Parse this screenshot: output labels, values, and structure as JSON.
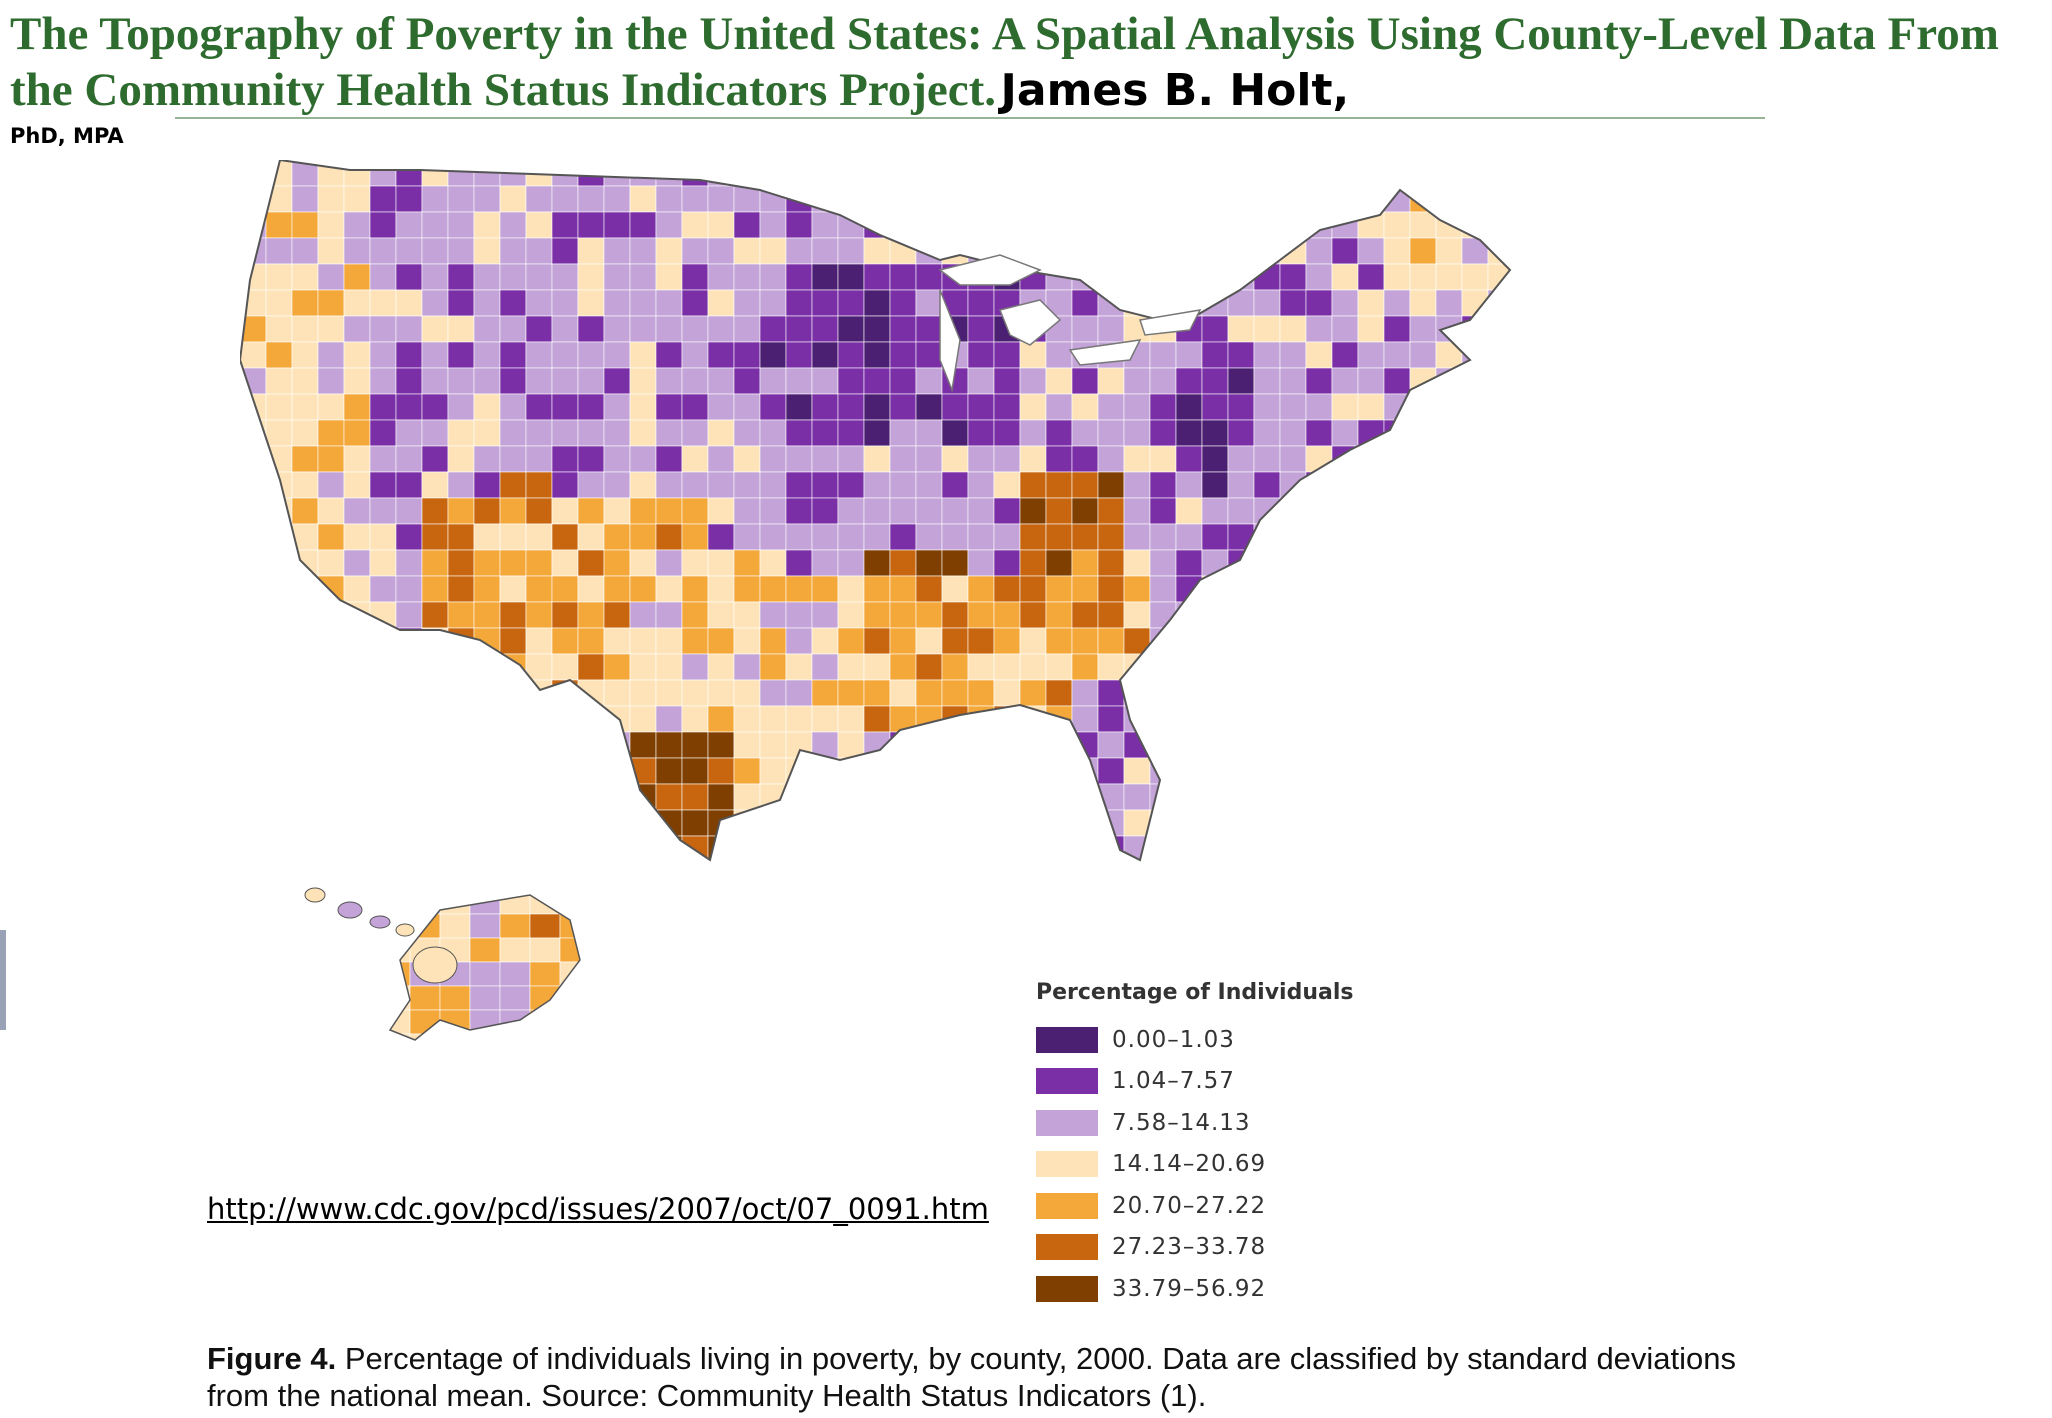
{
  "header": {
    "title": "The Topography of Poverty in the United States: A Spatial Analysis Using County-Level Data From the Community Health Status Indicators Project.",
    "author": "James B. Holt,",
    "credential": "PhD, MPA"
  },
  "legend": {
    "title": "Percentage of Individuals",
    "items": [
      {
        "label": "0.00–1.03",
        "color": "#4b2072"
      },
      {
        "label": "1.04–7.57",
        "color": "#7b2fa6"
      },
      {
        "label": "7.58–14.13",
        "color": "#c3a3d8"
      },
      {
        "label": "14.14–20.69",
        "color": "#fde3b7"
      },
      {
        "label": "20.70–27.22",
        "color": "#f4a83a"
      },
      {
        "label": "27.23–33.78",
        "color": "#c8650f"
      },
      {
        "label": "33.79–56.92",
        "color": "#7f3f00"
      }
    ]
  },
  "link": {
    "url": "http://www.cdc.gov/pcd/issues/2007/oct/07_0091.htm"
  },
  "caption": {
    "label": "Figure 4.",
    "text": "Percentage of individuals living in poverty, by county, 2000. Data are classified by standard deviations from the national mean. Source: Community Health Status Indicators (1)."
  },
  "map": {
    "region_fills": [
      {
        "name": "west-coast",
        "level": 3
      },
      {
        "name": "mountain-west",
        "level": 2
      },
      {
        "name": "northern-plains",
        "level": 2
      },
      {
        "name": "four-corners",
        "level": 5
      },
      {
        "name": "southwest-border",
        "level": 4
      },
      {
        "name": "texas",
        "level": 3
      },
      {
        "name": "texas-border",
        "level": 6
      },
      {
        "name": "midwest",
        "level": 2
      },
      {
        "name": "upper-midwest",
        "level": 1
      },
      {
        "name": "mississippi-delta",
        "level": 6
      },
      {
        "name": "deep-south",
        "level": 4
      },
      {
        "name": "appalachia",
        "level": 5
      },
      {
        "name": "northeast",
        "level": 2
      },
      {
        "name": "northeast-metro",
        "level": 1
      },
      {
        "name": "florida",
        "level": 2
      },
      {
        "name": "maine",
        "level": 3
      },
      {
        "name": "alaska",
        "level": 3
      },
      {
        "name": "hawaii",
        "level": 3
      }
    ]
  }
}
